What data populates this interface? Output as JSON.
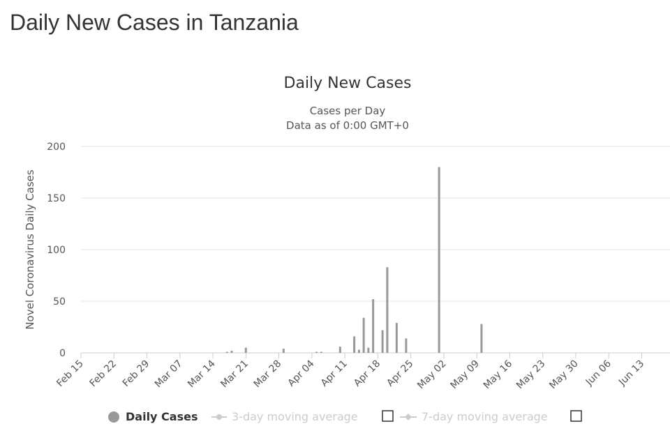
{
  "page": {
    "title": "Daily New Cases in Tanzania"
  },
  "chart_data": {
    "type": "bar",
    "title": "Daily New Cases",
    "subtitle_lines": [
      "Cases per Day",
      "Data as of 0:00 GMT+0"
    ],
    "ylabel": "Novel Coronavirus Daily Cases",
    "xlabel": "",
    "ylim": [
      0,
      200
    ],
    "y_ticks": [
      0,
      50,
      100,
      150,
      200
    ],
    "grid": true,
    "x_start": "2020-02-15",
    "x_end": "2020-06-19",
    "x_ticks": [
      "Feb 15",
      "Feb 22",
      "Feb 29",
      "Mar 07",
      "Mar 14",
      "Mar 21",
      "Mar 28",
      "Apr 04",
      "Apr 11",
      "Apr 18",
      "Apr 25",
      "May 02",
      "May 09",
      "May 16",
      "May 23",
      "May 30",
      "Jun 06",
      "Jun 13"
    ],
    "series": [
      {
        "name": "Daily Cases",
        "color": "#999999",
        "points": [
          {
            "x": "2020-03-17",
            "y": 1
          },
          {
            "x": "2020-03-18",
            "y": 2
          },
          {
            "x": "2020-03-21",
            "y": 5
          },
          {
            "x": "2020-03-29",
            "y": 4
          },
          {
            "x": "2020-04-05",
            "y": 1
          },
          {
            "x": "2020-04-06",
            "y": 1
          },
          {
            "x": "2020-04-10",
            "y": 6
          },
          {
            "x": "2020-04-13",
            "y": 16
          },
          {
            "x": "2020-04-14",
            "y": 3
          },
          {
            "x": "2020-04-15",
            "y": 34
          },
          {
            "x": "2020-04-16",
            "y": 5
          },
          {
            "x": "2020-04-17",
            "y": 52
          },
          {
            "x": "2020-04-19",
            "y": 22
          },
          {
            "x": "2020-04-20",
            "y": 83
          },
          {
            "x": "2020-04-22",
            "y": 29
          },
          {
            "x": "2020-04-24",
            "y": 14
          },
          {
            "x": "2020-05-01",
            "y": 180
          },
          {
            "x": "2020-05-10",
            "y": 28
          }
        ]
      }
    ],
    "legend": {
      "placement": "bottom",
      "items": [
        {
          "label": "Daily Cases",
          "color": "#999999",
          "enabled": true
        },
        {
          "label": "3-day moving average",
          "color": "#cccccc",
          "enabled": false
        },
        {
          "label": "7-day moving average",
          "color": "#cccccc",
          "enabled": false
        }
      ]
    }
  }
}
